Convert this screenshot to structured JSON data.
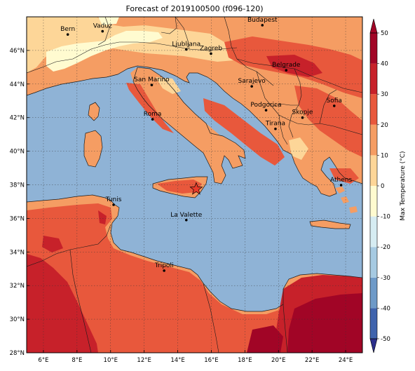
{
  "map": {
    "title": "Forecast of 2019100500 (f096-120)",
    "lon_range": [
      5,
      25
    ],
    "lat_range": [
      28,
      48
    ],
    "lon_ticks": [
      {
        "value": 6,
        "label": "6°E"
      },
      {
        "value": 8,
        "label": "8°E"
      },
      {
        "value": 10,
        "label": "10°E"
      },
      {
        "value": 12,
        "label": "12°E"
      },
      {
        "value": 14,
        "label": "14°E"
      },
      {
        "value": 16,
        "label": "16°E"
      },
      {
        "value": 18,
        "label": "18°E"
      },
      {
        "value": 20,
        "label": "20°E"
      },
      {
        "value": 22,
        "label": "22°E"
      },
      {
        "value": 24,
        "label": "24°E"
      }
    ],
    "lat_ticks": [
      {
        "value": 28,
        "label": "28°N"
      },
      {
        "value": 30,
        "label": "30°N"
      },
      {
        "value": 32,
        "label": "32°N"
      },
      {
        "value": 34,
        "label": "34°N"
      },
      {
        "value": 36,
        "label": "36°N"
      },
      {
        "value": 38,
        "label": "38°N"
      },
      {
        "value": 40,
        "label": "40°N"
      },
      {
        "value": 42,
        "label": "42°N"
      },
      {
        "value": 44,
        "label": "44°N"
      },
      {
        "value": 46,
        "label": "46°N"
      }
    ],
    "gridlines": true,
    "sea_color": "#8fb3d6",
    "cities": [
      {
        "name": "Bern",
        "lon": 7.45,
        "lat": 46.95
      },
      {
        "name": "Vaduz",
        "lon": 9.52,
        "lat": 47.14
      },
      {
        "name": "Budapest",
        "lon": 19.04,
        "lat": 47.5
      },
      {
        "name": "Ljubljana",
        "lon": 14.51,
        "lat": 46.06
      },
      {
        "name": "Zagreb",
        "lon": 15.98,
        "lat": 45.81
      },
      {
        "name": "Belgrade",
        "lon": 20.46,
        "lat": 44.82
      },
      {
        "name": "San Marino",
        "lon": 12.45,
        "lat": 43.94
      },
      {
        "name": "Sarajevo",
        "lon": 18.41,
        "lat": 43.86
      },
      {
        "name": "Sofia",
        "lon": 23.32,
        "lat": 42.7
      },
      {
        "name": "Podgorica",
        "lon": 19.26,
        "lat": 42.44
      },
      {
        "name": "Skopje",
        "lon": 21.43,
        "lat": 42.0
      },
      {
        "name": "Roma",
        "lon": 12.5,
        "lat": 41.9
      },
      {
        "name": "Tirana",
        "lon": 19.82,
        "lat": 41.33
      },
      {
        "name": "Athens",
        "lon": 23.73,
        "lat": 37.98
      },
      {
        "name": "Tunis",
        "lon": 10.18,
        "lat": 36.81
      },
      {
        "name": "La Valette",
        "lon": 14.51,
        "lat": 35.9
      },
      {
        "name": "Tripoli",
        "lon": 13.19,
        "lat": 32.89
      }
    ],
    "marker": {
      "symbol": "star",
      "lon": 15.1,
      "lat": 37.75,
      "color": "#e83a2a"
    }
  },
  "colorbar": {
    "title": "Max Temperature (°C)",
    "levels": [
      -50,
      -40,
      -30,
      -20,
      -10,
      0,
      10,
      20,
      30,
      40,
      50
    ],
    "colors": [
      "#2c2f8c",
      "#3f63ad",
      "#6e9ac8",
      "#a6cae2",
      "#d6ecf2",
      "#fffbd0",
      "#fdd698",
      "#f59d63",
      "#e8583c",
      "#c7212a",
      "#a10526"
    ],
    "extend": "both"
  }
}
